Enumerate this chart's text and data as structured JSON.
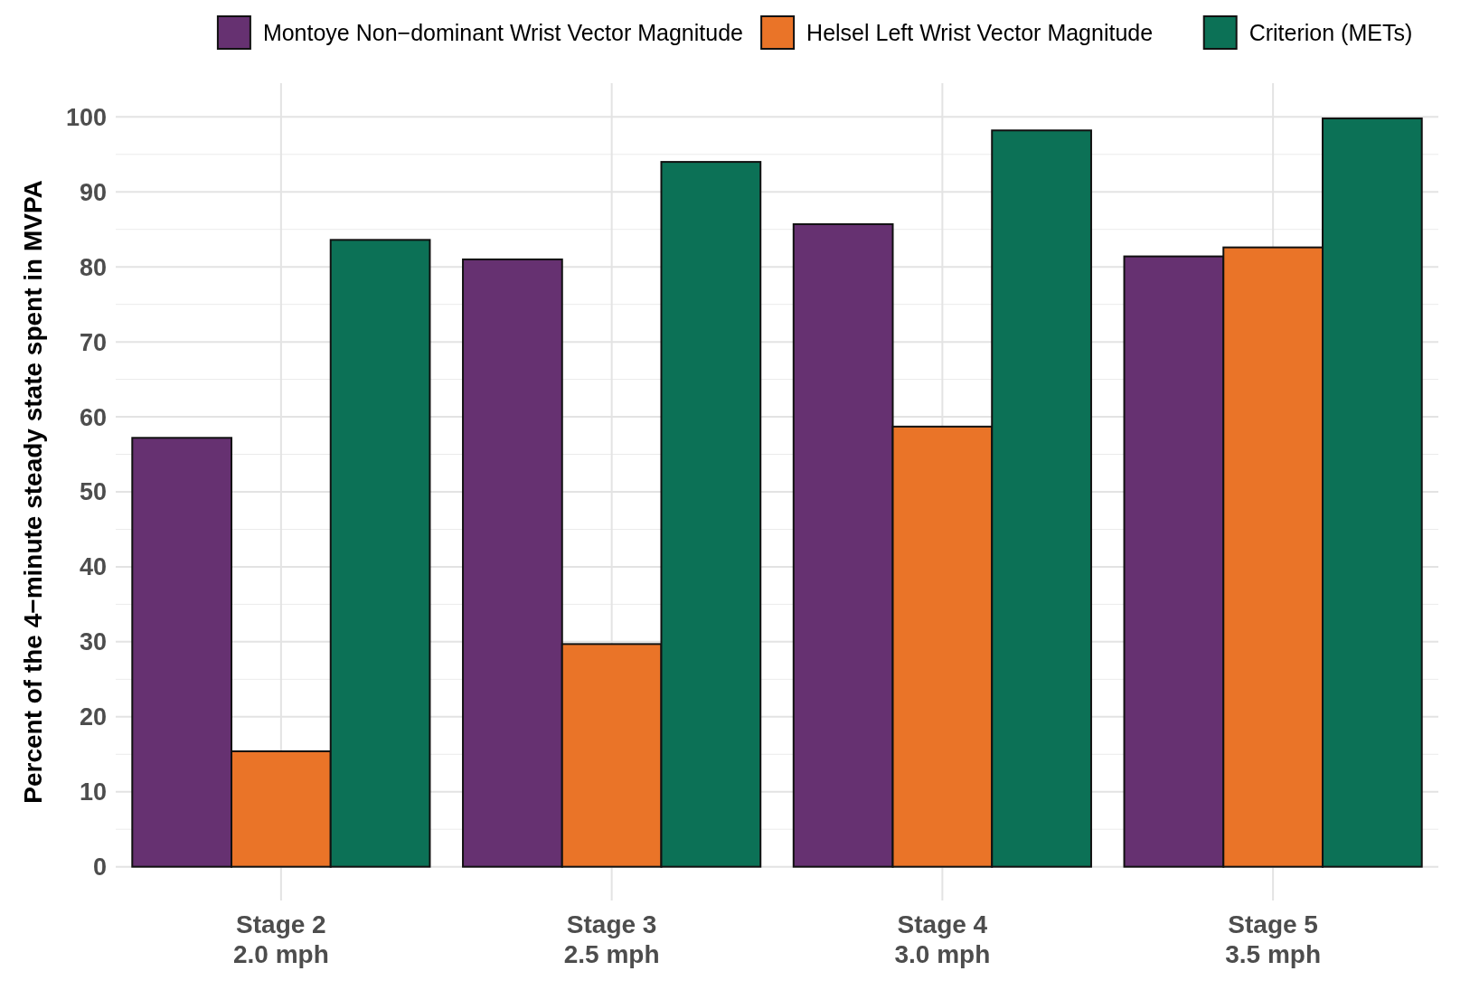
{
  "chart_data": {
    "type": "bar",
    "ylabel": "Percent of the 4−minute steady state spent in MVPA",
    "categories": [
      "Stage 2\n2.0 mph",
      "Stage 3\n2.5 mph",
      "Stage 4\n3.0 mph",
      "Stage 5\n3.5 mph"
    ],
    "series": [
      {
        "name": "Montoye Non−dominant Wrist Vector Magnitude",
        "color": "#663171",
        "values": [
          57.2,
          81.0,
          85.7,
          81.4
        ]
      },
      {
        "name": "Helsel Left Wrist Vector Magnitude",
        "color": "#ea7428",
        "values": [
          15.4,
          29.7,
          58.7,
          82.6
        ]
      },
      {
        "name": "Criterion (METs)",
        "color": "#0c7156",
        "values": [
          83.6,
          94.0,
          98.2,
          99.8
        ]
      }
    ],
    "ylim": [
      -4.5,
      104.5
    ],
    "yticks": [
      0,
      10,
      20,
      30,
      40,
      50,
      60,
      70,
      80,
      90,
      100
    ],
    "grid": true,
    "legend": "top"
  }
}
